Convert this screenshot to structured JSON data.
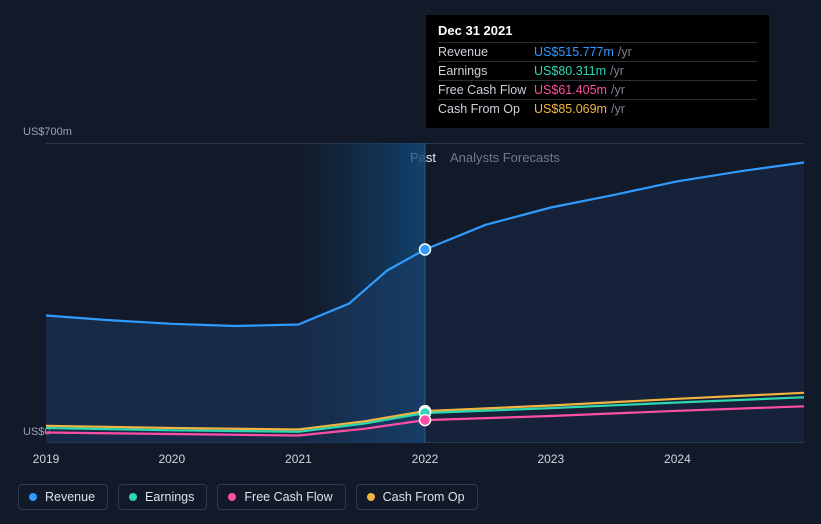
{
  "chart": {
    "type": "line_area",
    "background_color": "#121a2a",
    "grid_color": "#2a3649",
    "y_axis": {
      "lower_label": "US$0",
      "upper_label": "US$700m",
      "min": 0,
      "max": 800
    },
    "x_axis": {
      "ticks": [
        {
          "label": "2019",
          "t": 0.0
        },
        {
          "label": "2020",
          "t": 0.166
        },
        {
          "label": "2021",
          "t": 0.333
        },
        {
          "label": "2022",
          "t": 0.5
        },
        {
          "label": "2023",
          "t": 0.666
        },
        {
          "label": "2024",
          "t": 0.833
        }
      ]
    },
    "regions": {
      "past_label": "Past",
      "forecast_label": "Analysts Forecasts",
      "split_t": 0.5
    },
    "series": [
      {
        "key": "revenue",
        "label": "Revenue",
        "color": "#2f9bff",
        "area_fill": "#1b3a63",
        "area_opacity_past": 0.55,
        "area_opacity_future": 0.28,
        "points": [
          {
            "t": 0.0,
            "v": 340
          },
          {
            "t": 0.08,
            "v": 328
          },
          {
            "t": 0.166,
            "v": 318
          },
          {
            "t": 0.25,
            "v": 312
          },
          {
            "t": 0.333,
            "v": 316
          },
          {
            "t": 0.4,
            "v": 372
          },
          {
            "t": 0.45,
            "v": 460
          },
          {
            "t": 0.5,
            "v": 516
          },
          {
            "t": 0.58,
            "v": 582
          },
          {
            "t": 0.666,
            "v": 628
          },
          {
            "t": 0.75,
            "v": 662
          },
          {
            "t": 0.833,
            "v": 698
          },
          {
            "t": 0.92,
            "v": 726
          },
          {
            "t": 1.0,
            "v": 748
          }
        ]
      },
      {
        "key": "cash_from_op",
        "label": "Cash From Op",
        "color": "#f2b441",
        "points": [
          {
            "t": 0.0,
            "v": 46
          },
          {
            "t": 0.166,
            "v": 40
          },
          {
            "t": 0.333,
            "v": 36
          },
          {
            "t": 0.42,
            "v": 58
          },
          {
            "t": 0.5,
            "v": 85
          },
          {
            "t": 0.666,
            "v": 100
          },
          {
            "t": 0.833,
            "v": 118
          },
          {
            "t": 1.0,
            "v": 134
          }
        ]
      },
      {
        "key": "earnings",
        "label": "Earnings",
        "color": "#2fd7b0",
        "points": [
          {
            "t": 0.0,
            "v": 40
          },
          {
            "t": 0.166,
            "v": 34
          },
          {
            "t": 0.333,
            "v": 30
          },
          {
            "t": 0.42,
            "v": 52
          },
          {
            "t": 0.5,
            "v": 80
          },
          {
            "t": 0.666,
            "v": 93
          },
          {
            "t": 0.833,
            "v": 108
          },
          {
            "t": 1.0,
            "v": 122
          }
        ]
      },
      {
        "key": "free_cash_flow",
        "label": "Free Cash Flow",
        "color": "#ff4fa3",
        "points": [
          {
            "t": 0.0,
            "v": 28
          },
          {
            "t": 0.166,
            "v": 24
          },
          {
            "t": 0.333,
            "v": 20
          },
          {
            "t": 0.42,
            "v": 38
          },
          {
            "t": 0.5,
            "v": 61
          },
          {
            "t": 0.666,
            "v": 72
          },
          {
            "t": 0.833,
            "v": 86
          },
          {
            "t": 1.0,
            "v": 98
          }
        ]
      }
    ],
    "highlight": {
      "t": 0.5,
      "markers": [
        {
          "series": "revenue",
          "v": 516,
          "ring": "#ffffff"
        },
        {
          "series": "cash_from_op",
          "v": 85,
          "ring": "#ffffff"
        },
        {
          "series": "earnings",
          "v": 80,
          "ring": "#ffffff"
        },
        {
          "series": "free_cash_flow",
          "v": 61,
          "ring": "#ffffff"
        }
      ]
    },
    "beam_gradient": {
      "from": "#0f3a63",
      "to": "rgba(15,58,99,0)"
    }
  },
  "tooltip": {
    "date": "Dec 31 2021",
    "rows": [
      {
        "label": "Revenue",
        "value": "US$515.777m",
        "unit": "/yr",
        "color": "#2f9bff"
      },
      {
        "label": "Earnings",
        "value": "US$80.311m",
        "unit": "/yr",
        "color": "#2fd7b0"
      },
      {
        "label": "Free Cash Flow",
        "value": "US$61.405m",
        "unit": "/yr",
        "color": "#ff4fa3"
      },
      {
        "label": "Cash From Op",
        "value": "US$85.069m",
        "unit": "/yr",
        "color": "#f2b441"
      }
    ]
  },
  "legend": {
    "items": [
      {
        "label": "Revenue",
        "color": "#2f9bff"
      },
      {
        "label": "Earnings",
        "color": "#2fd7b0"
      },
      {
        "label": "Free Cash Flow",
        "color": "#ff4fa3"
      },
      {
        "label": "Cash From Op",
        "color": "#f2b441"
      }
    ]
  }
}
